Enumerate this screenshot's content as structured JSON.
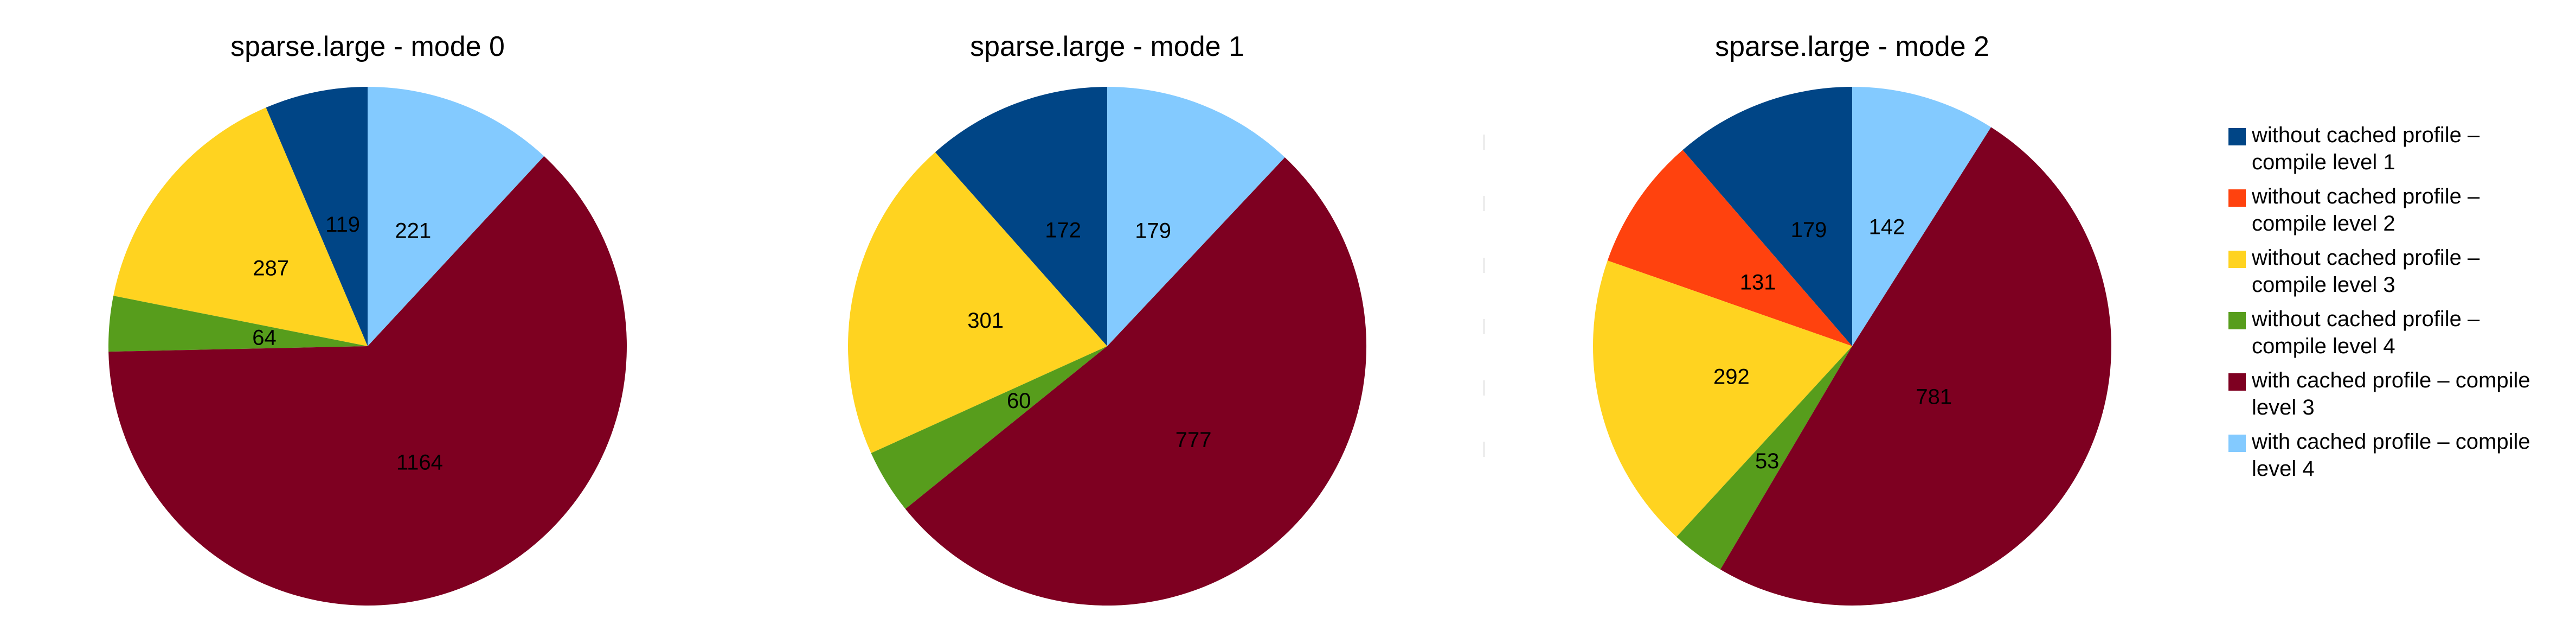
{
  "chart_data": [
    {
      "type": "pie",
      "title": "sparse.large - mode 0",
      "values": [
        119,
        0,
        287,
        64,
        1164,
        221
      ]
    },
    {
      "type": "pie",
      "title": "sparse.large - mode 1",
      "values": [
        172,
        0,
        301,
        60,
        777,
        179
      ]
    },
    {
      "type": "pie",
      "title": "sparse.large - mode 2",
      "values": [
        179,
        131,
        292,
        53,
        781,
        142
      ]
    }
  ],
  "legend": {
    "position": "right",
    "items": [
      {
        "lines": [
          "without cached profile –",
          "compile level 1"
        ],
        "color": "#004586"
      },
      {
        "lines": [
          "without cached profile –",
          "compile level 2"
        ],
        "color": "#ff420e"
      },
      {
        "lines": [
          "without cached profile –",
          "compile level 3"
        ],
        "color": "#ffd320"
      },
      {
        "lines": [
          "without cached profile –",
          "compile level 4"
        ],
        "color": "#579d1c"
      },
      {
        "lines": [
          "with cached profile – compile",
          "level 3"
        ],
        "color": "#7e0021"
      },
      {
        "lines": [
          "with cached profile – compile",
          "level 4"
        ],
        "color": "#83caff"
      }
    ]
  }
}
